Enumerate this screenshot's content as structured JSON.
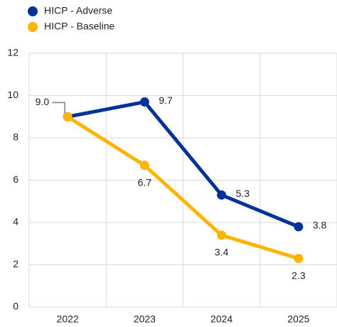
{
  "chart_data": {
    "type": "line",
    "categories": [
      "2022",
      "2023",
      "2024",
      "2025"
    ],
    "series": [
      {
        "name": "HICP - Adverse",
        "color": "#003299",
        "values": [
          9.0,
          9.7,
          5.3,
          3.8
        ],
        "value_labels": [
          "9.0",
          "9.7",
          "5.3",
          "3.8"
        ]
      },
      {
        "name": "HICP - Baseline",
        "color": "#ffb400",
        "values": [
          9.0,
          6.7,
          3.4,
          2.3
        ],
        "value_labels": [
          null,
          "6.7",
          "3.4",
          "2.3"
        ]
      }
    ],
    "ylim": [
      0,
      12
    ],
    "yticks": [
      0,
      2,
      4,
      6,
      8,
      10,
      12
    ],
    "grid": true,
    "legend": "top-left"
  }
}
